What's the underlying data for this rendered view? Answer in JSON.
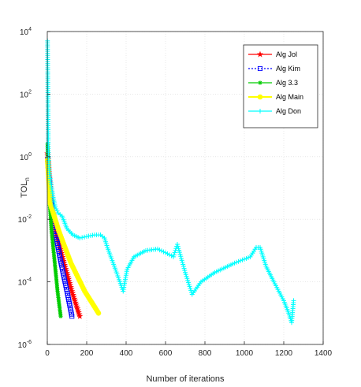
{
  "chart_data": {
    "type": "line",
    "xlabel": "Number of iterations",
    "ylabel_main": "TOL",
    "ylabel_sub": "n",
    "xlim": [
      0,
      1400
    ],
    "ylim_exp": [
      -6,
      4
    ],
    "y_scale": "log",
    "grid": true,
    "legend_position": "top-right",
    "x_ticks": [
      "0",
      "200",
      "400",
      "600",
      "800",
      "1000",
      "1200",
      "1400"
    ],
    "y_tick_exponents": [
      "-6",
      "-4",
      "-2",
      "0",
      "2",
      "4"
    ],
    "y_tick_base": "10",
    "series": [
      {
        "name": "Alg Jol",
        "color": "#ff0000",
        "marker": "star",
        "dash": "",
        "points": [
          [
            1,
            0.1
          ],
          [
            15,
            -1.1
          ],
          [
            45,
            -2.4
          ],
          [
            85,
            -3.4
          ],
          [
            125,
            -4.3
          ],
          [
            165,
            -5.1
          ]
        ]
      },
      {
        "name": "Alg Kim",
        "color": "#0000ff",
        "marker": "square",
        "dash": "2,2",
        "points": [
          [
            1,
            -0.1
          ],
          [
            15,
            -1.2
          ],
          [
            40,
            -2.4
          ],
          [
            70,
            -3.4
          ],
          [
            100,
            -4.3
          ],
          [
            125,
            -5.1
          ]
        ]
      },
      {
        "name": "Alg 3.3",
        "color": "#00cc00",
        "marker": "asterisk",
        "dash": "",
        "points": [
          [
            1,
            0.4
          ],
          [
            8,
            -1.1
          ],
          [
            22,
            -2.4
          ],
          [
            38,
            -3.4
          ],
          [
            52,
            -4.3
          ],
          [
            68,
            -5.1
          ]
        ]
      },
      {
        "name": "Alg Main",
        "color": "#ffff00",
        "marker": "circle",
        "dash": "",
        "points": [
          [
            1,
            -0.1
          ],
          [
            15,
            -1.5
          ],
          [
            60,
            -2.4
          ],
          [
            120,
            -3.4
          ],
          [
            190,
            -4.3
          ],
          [
            260,
            -5.0
          ]
        ]
      },
      {
        "name": "Alg Don",
        "color": "#00ffff",
        "marker": "plus",
        "dash": "",
        "points": [
          [
            1,
            3.7
          ],
          [
            5,
            0.2
          ],
          [
            10,
            -0.5
          ],
          [
            20,
            -0.9
          ],
          [
            30,
            -1.3
          ],
          [
            40,
            -1.6
          ],
          [
            55,
            -1.8
          ],
          [
            75,
            -1.9
          ],
          [
            100,
            -2.3
          ],
          [
            130,
            -2.5
          ],
          [
            165,
            -2.6
          ],
          [
            200,
            -2.55
          ],
          [
            240,
            -2.5
          ],
          [
            270,
            -2.5
          ],
          [
            290,
            -2.6
          ],
          [
            305,
            -2.9
          ],
          [
            340,
            -3.5
          ],
          [
            385,
            -4.3
          ],
          [
            405,
            -3.6
          ],
          [
            440,
            -3.2
          ],
          [
            500,
            -3.0
          ],
          [
            560,
            -2.95
          ],
          [
            610,
            -3.1
          ],
          [
            640,
            -3.2
          ],
          [
            660,
            -2.8
          ],
          [
            700,
            -3.7
          ],
          [
            735,
            -4.4
          ],
          [
            780,
            -4.0
          ],
          [
            850,
            -3.7
          ],
          [
            950,
            -3.4
          ],
          [
            1030,
            -3.2
          ],
          [
            1060,
            -2.9
          ],
          [
            1080,
            -2.9
          ],
          [
            1110,
            -3.5
          ],
          [
            1150,
            -4.0
          ],
          [
            1200,
            -4.6
          ],
          [
            1225,
            -5.0
          ],
          [
            1240,
            -5.3
          ],
          [
            1250,
            -4.6
          ]
        ]
      }
    ]
  }
}
